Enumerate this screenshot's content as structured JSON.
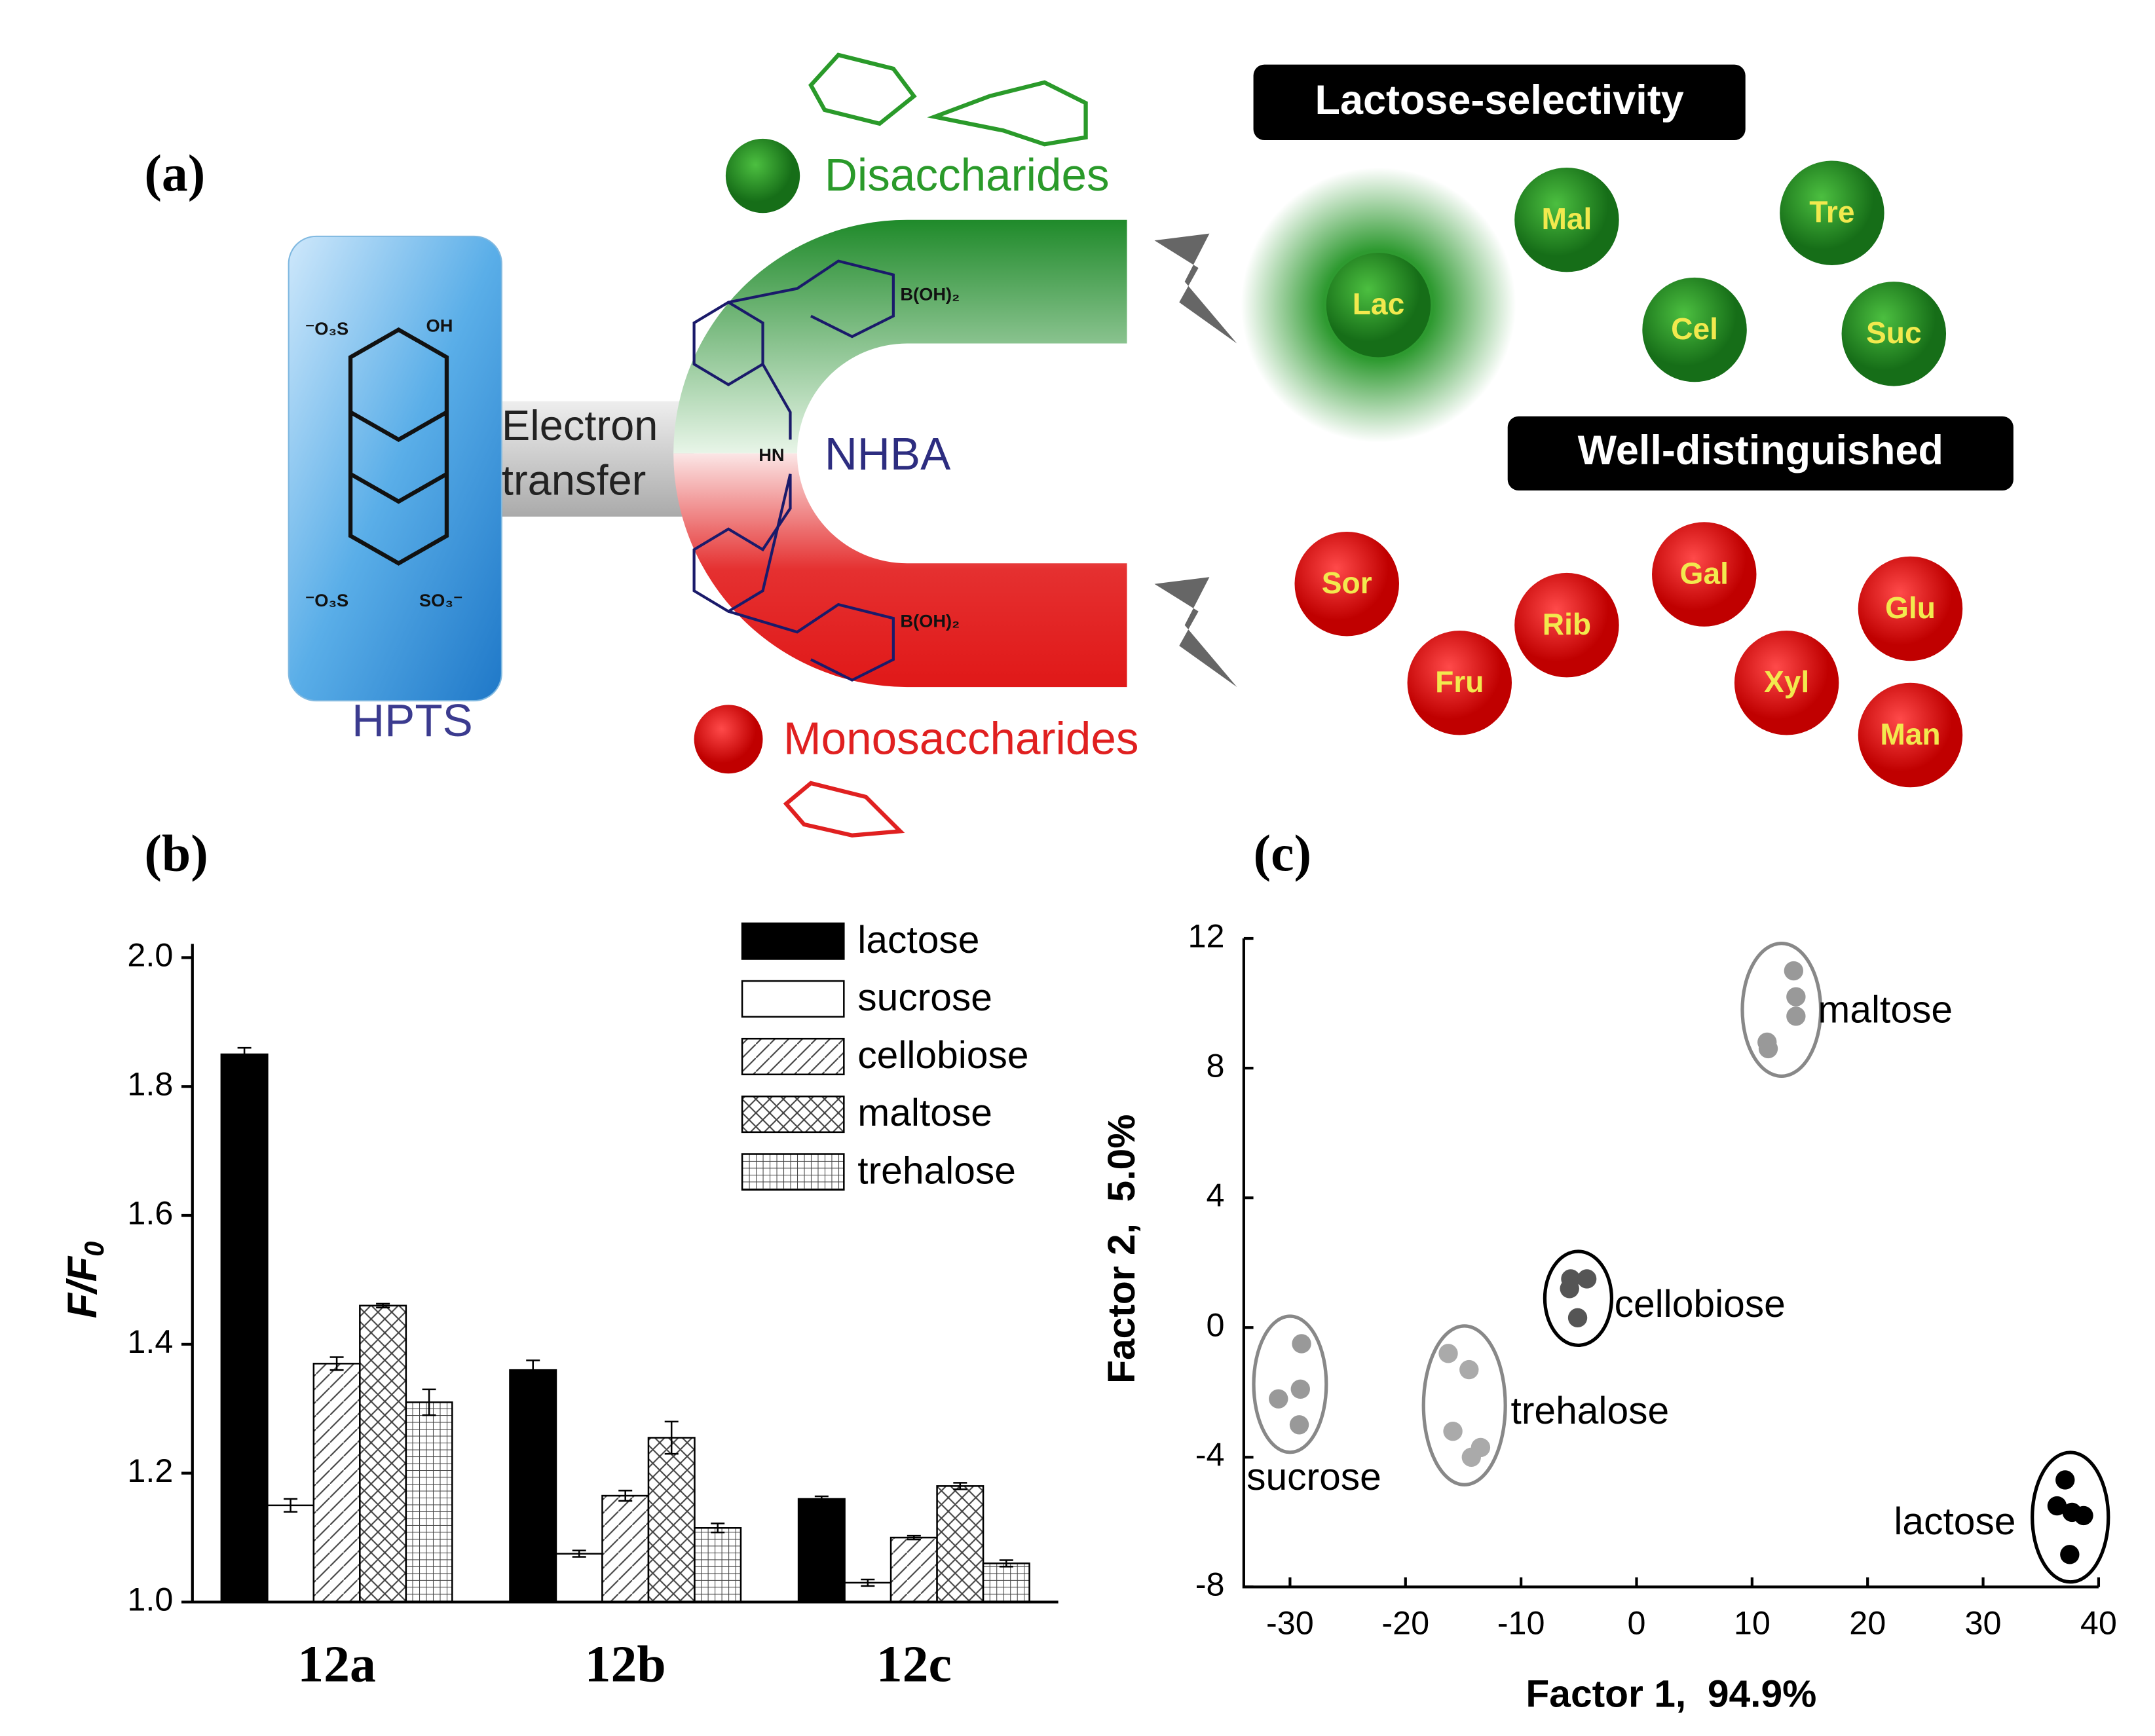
{
  "panel_a": {
    "label": "(a)",
    "lactose_tag": "Lactose-selectivity",
    "well_tag": "Well-distinguished",
    "disaccharides": "Disaccharides",
    "monosaccharides": "Monosaccharides",
    "electron": "Electron",
    "transfer": "transfer",
    "nhba": "NHBA",
    "hpts": "HPTS",
    "hpts_labels": [
      "⁻O₃S",
      "OH",
      "⁻O₃S",
      "SO₃⁻"
    ],
    "nhba_labels": [
      "B(OH)₂",
      "HN",
      "B(OH)₂"
    ],
    "disaccharide_balls": [
      "Lac",
      "Mal",
      "Tre",
      "Cel",
      "Suc"
    ],
    "monosaccharide_balls": [
      "Sor",
      "Gal",
      "Glu",
      "Rib",
      "Fru",
      "Xyl",
      "Man"
    ]
  },
  "chart_data": [
    {
      "type": "bar",
      "panel": "(b)",
      "y_label": "F/F",
      "y_label_subscript": "0",
      "categories": [
        "12a",
        "12b",
        "12c"
      ],
      "series": [
        {
          "name": "lactose",
          "color": "#000000",
          "pattern": "solid",
          "values": [
            1.85,
            1.36,
            1.16
          ],
          "errors": [
            0.01,
            0.015,
            0.004
          ]
        },
        {
          "name": "sucrose",
          "color": "#ffffff",
          "pattern": "solid",
          "values": [
            1.15,
            1.075,
            1.03
          ],
          "errors": [
            0.01,
            0.005,
            0.005
          ]
        },
        {
          "name": "cellobiose",
          "color": "#ffffff",
          "pattern": "diagonal",
          "values": [
            1.37,
            1.165,
            1.1
          ],
          "errors": [
            0.01,
            0.008,
            0.003
          ]
        },
        {
          "name": "maltose",
          "color": "#ffffff",
          "pattern": "cross",
          "values": [
            1.46,
            1.255,
            1.18
          ],
          "errors": [
            0.003,
            0.025,
            0.005
          ]
        },
        {
          "name": "trehalose",
          "color": "#ffffff",
          "pattern": "grid",
          "values": [
            1.31,
            1.115,
            1.06
          ],
          "errors": [
            0.02,
            0.007,
            0.005
          ]
        }
      ],
      "ylim": [
        1,
        2
      ],
      "yticks": [
        {
          "value": 1,
          "label": "1.0"
        },
        1.2,
        1.4,
        1.6,
        1.8,
        {
          "value": 2,
          "label": "2.0"
        }
      ],
      "legend": "upper right"
    },
    {
      "type": "scatter",
      "panel": "(c)",
      "x_label": "Factor 1,  94.9%",
      "y_label": "Factor 2,  5.0%",
      "series": [
        {
          "name": "maltose",
          "color": "#999999",
          "ring": "#888888",
          "x": [
            13.6,
            13.8,
            13.8,
            11.3,
            11.4
          ],
          "y": [
            11.0,
            10.2,
            9.6,
            8.8,
            8.6
          ]
        },
        {
          "name": "cellobiose",
          "color": "#555555",
          "ring": "#000000",
          "x": [
            -5.7,
            -4.3,
            -5.8,
            -5.1
          ],
          "y": [
            1.5,
            1.5,
            1.2,
            0.3
          ]
        },
        {
          "name": "trehalose",
          "color": "#aaaaaa",
          "ring": "#888888",
          "x": [
            -16.3,
            -14.5,
            -15.9,
            -13.5,
            -14.3
          ],
          "y": [
            -0.8,
            -1.3,
            -3.2,
            -3.7,
            -4.0
          ]
        },
        {
          "name": "sucrose",
          "color": "#999999",
          "ring": "#888888",
          "x": [
            -29.0,
            -31.0,
            -29.1,
            -29.2
          ],
          "y": [
            -0.5,
            -2.2,
            -1.9,
            -3.0
          ]
        },
        {
          "name": "lactose",
          "color": "#000000",
          "ring": "#000000",
          "x": [
            37.1,
            36.4,
            37.7,
            38.7,
            37.5
          ],
          "y": [
            -4.7,
            -5.5,
            -5.7,
            -5.8,
            -7.0
          ]
        }
      ],
      "xlim": [
        -34,
        40
      ],
      "xticks": [
        -30,
        -20,
        -10,
        0,
        10,
        20,
        30,
        40
      ],
      "ylim": [
        -8,
        12
      ],
      "yticks": [
        -8,
        -4,
        0,
        4,
        8,
        12
      ]
    }
  ]
}
